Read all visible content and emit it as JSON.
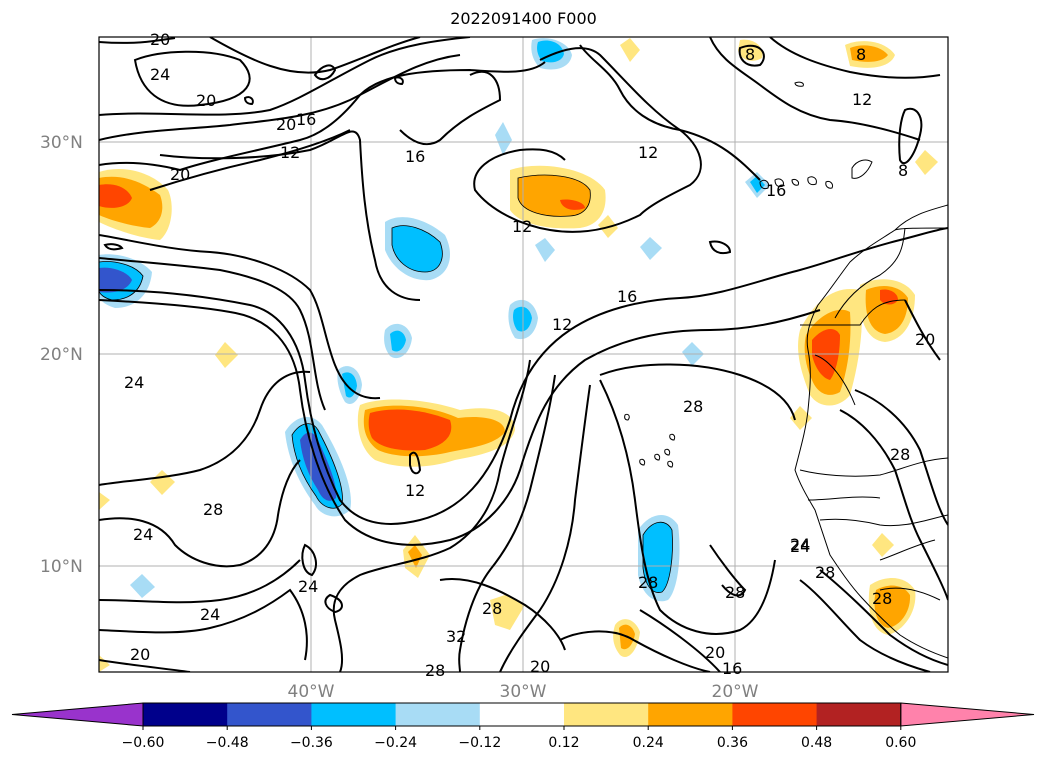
{
  "title": "2022091400 F000",
  "lat_labels": [
    "30°N",
    "20°N",
    "10°N"
  ],
  "lon_labels": [
    "40°W",
    "30°W",
    "20°W"
  ],
  "colorbar": {
    "ticks": [
      "−0.60",
      "−0.48",
      "−0.36",
      "−0.24",
      "−0.12",
      "0.12",
      "0.24",
      "0.36",
      "0.48",
      "0.60"
    ],
    "colors": [
      "#9933cc",
      "#00008b",
      "#3355cc",
      "#00bfff",
      "#a8dcf5",
      "#ffffff",
      "#ffe680",
      "#ffa500",
      "#ff4500",
      "#b22222",
      "#ff82ab"
    ]
  },
  "contour_labels": [
    "20",
    "24",
    "20",
    "20",
    "16",
    "12",
    "16",
    "20",
    "12",
    "12",
    "16",
    "12",
    "8",
    "8",
    "12",
    "8",
    "16",
    "12",
    "20",
    "24",
    "28",
    "24",
    "28",
    "24",
    "24",
    "24",
    "20",
    "28",
    "32",
    "28",
    "20",
    "16",
    "28",
    "28",
    "28",
    "20",
    "24",
    "28",
    "28",
    "20",
    "12"
  ],
  "colors": {
    "contour": "#000000",
    "grid": "#b0b0b0"
  }
}
